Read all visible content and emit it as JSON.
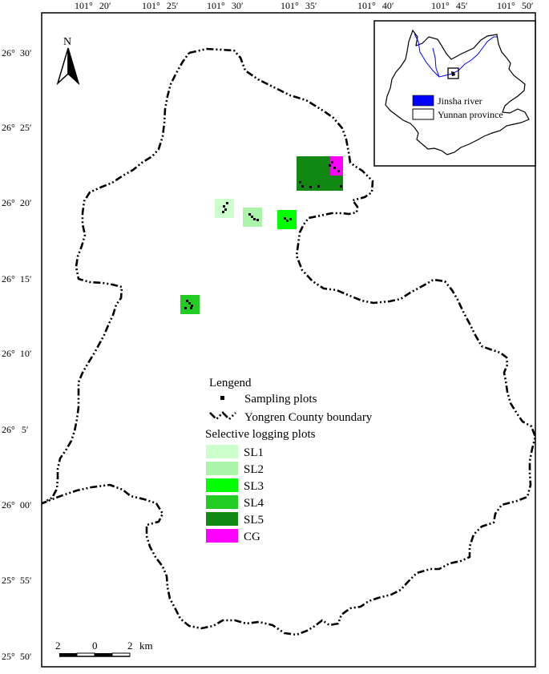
{
  "map": {
    "north_label": "N",
    "top_ticks": [
      {
        "deg": "101°",
        "min": "20′"
      },
      {
        "deg": "101°",
        "min": "25′"
      },
      {
        "deg": "101°",
        "min": "30′"
      },
      {
        "deg": "101°",
        "min": "35′"
      },
      {
        "deg": "101°",
        "min": "40′"
      },
      {
        "deg": "101°",
        "min": "45′"
      },
      {
        "deg": "101°",
        "min": "50′"
      }
    ],
    "left_ticks": [
      {
        "deg": "26°",
        "min": "30′"
      },
      {
        "deg": "26°",
        "min": "25′"
      },
      {
        "deg": "26°",
        "min": "20′"
      },
      {
        "deg": "26°",
        "min": "15′"
      },
      {
        "deg": "26°",
        "min": "10′"
      },
      {
        "deg": "26°",
        "min": "5′"
      },
      {
        "deg": "26°",
        "min": "00′"
      },
      {
        "deg": "25°",
        "min": "55′"
      },
      {
        "deg": "25°",
        "min": "50′"
      }
    ],
    "legend": {
      "title": "Lengend",
      "sampling": "Sampling plots",
      "boundary": "Yongren County boundary",
      "logging_title": "Selective logging plots",
      "classes": [
        {
          "label": "SL1",
          "color": "#ccffcc"
        },
        {
          "label": "SL2",
          "color": "#aaf5aa"
        },
        {
          "label": "SL3",
          "color": "#00ff00"
        },
        {
          "label": "SL4",
          "color": "#22cc22"
        },
        {
          "label": "SL5",
          "color": "#118811"
        },
        {
          "label": "CG",
          "color": "#ff00ff"
        }
      ]
    },
    "inset": {
      "river_label": "Jinsha river",
      "province_label": "Yunnan province",
      "river_color": "#0000ff"
    },
    "scale": {
      "left": "2",
      "mid": "0",
      "right": "2",
      "unit": "km"
    }
  }
}
